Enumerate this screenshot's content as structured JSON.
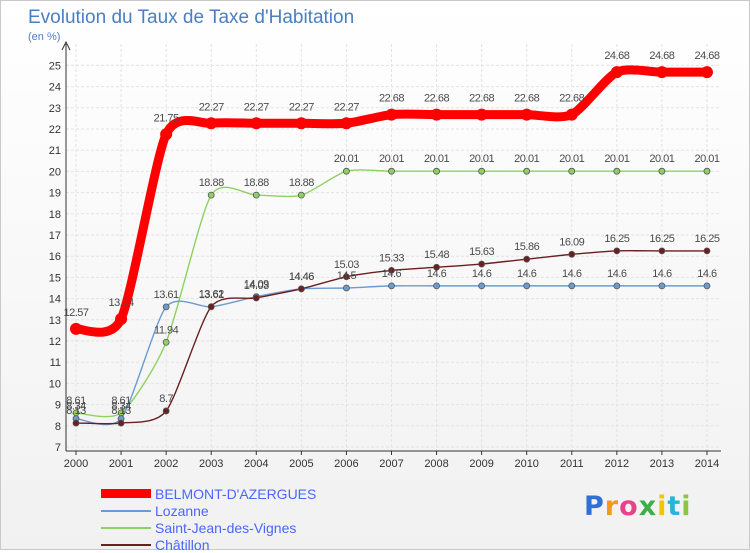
{
  "chart_data": {
    "type": "line",
    "title": "Evolution du Taux de Taxe d'Habitation",
    "unit_label": "(en %)",
    "x": [
      "2000",
      "2001",
      "2002",
      "2003",
      "2004",
      "2005",
      "2006",
      "2007",
      "2008",
      "2009",
      "2010",
      "2011",
      "2012",
      "2013",
      "2014"
    ],
    "ylim": [
      7,
      25
    ],
    "yticks": [
      7,
      8,
      9,
      10,
      11,
      12,
      13,
      14,
      15,
      16,
      17,
      18,
      19,
      20,
      21,
      22,
      23,
      24,
      25
    ],
    "series": [
      {
        "name": "BELMONT-D'AZERGUES",
        "color": "#ff0000",
        "values": [
          12.57,
          13.04,
          21.75,
          22.27,
          22.27,
          22.27,
          22.27,
          22.68,
          22.68,
          22.68,
          22.68,
          22.68,
          24.68,
          24.68,
          24.68
        ],
        "labels": [
          "12.57",
          "13.04",
          "21.75",
          "22.27",
          "22.27",
          "22.27",
          "22.27",
          "22.68",
          "22.68",
          "22.68",
          "22.68",
          "22.68",
          "24.68",
          "24.68",
          "24.68"
        ]
      },
      {
        "name": "Lozanne",
        "color": "#6a9bd1",
        "values": [
          8.34,
          8.34,
          13.61,
          13.61,
          14.09,
          14.46,
          14.5,
          14.6,
          14.6,
          14.6,
          14.6,
          14.6,
          14.6,
          14.6,
          14.6
        ],
        "labels": [
          "8.34",
          "8.34",
          "13.61",
          "13.61",
          "14.09",
          "14.46",
          "14.5",
          "14.6",
          "14.6",
          "14.6",
          "14.6",
          "14.6",
          "14.6",
          "14.6",
          "14.6"
        ]
      },
      {
        "name": "Saint-Jean-des-Vignes",
        "color": "#8fd160",
        "values": [
          8.61,
          8.61,
          11.94,
          18.88,
          18.88,
          18.88,
          20.01,
          20.01,
          20.01,
          20.01,
          20.01,
          20.01,
          20.01,
          20.01,
          20.01
        ],
        "labels": [
          "8.61",
          "8.61",
          "11.94",
          "18.88",
          "18.88",
          "18.88",
          "20.01",
          "20.01",
          "20.01",
          "20.01",
          "20.01",
          "20.01",
          "20.01",
          "20.01",
          "20.01"
        ]
      },
      {
        "name": "Châtillon",
        "color": "#6b1f1f",
        "values": [
          8.13,
          8.13,
          8.7,
          13.62,
          14.03,
          14.46,
          15.03,
          15.33,
          15.48,
          15.63,
          15.86,
          16.09,
          16.25,
          16.25,
          16.25
        ],
        "labels": [
          "8.13",
          "8.13",
          "8.7",
          "13.62",
          "14.03",
          "14.46",
          "15.03",
          "15.33",
          "15.48",
          "15.63",
          "15.86",
          "16.09",
          "16.25",
          "16.25",
          "16.25"
        ]
      }
    ],
    "legend_position": "bottom-left",
    "grid": true
  },
  "brand": {
    "letters": [
      "P",
      "r",
      "o",
      "x",
      "i",
      "t",
      "i"
    ],
    "colors": [
      "#2f6fd6",
      "#f39a1a",
      "#e7428a",
      "#3fae49",
      "#f5c400",
      "#2bb2d8",
      "#8cc63f"
    ]
  }
}
